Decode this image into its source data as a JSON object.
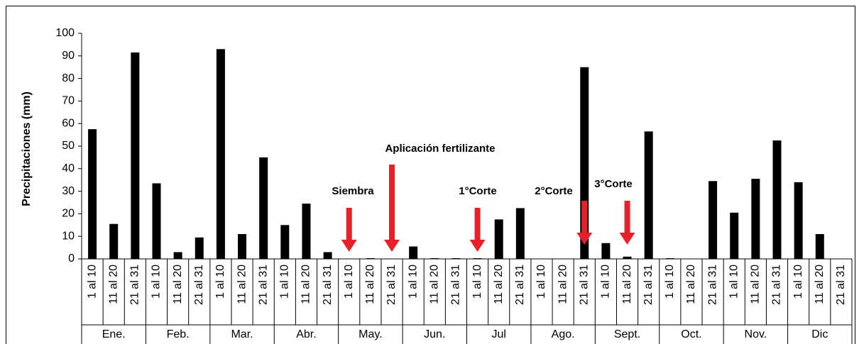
{
  "chart_data": {
    "type": "bar",
    "y_label": "Precipitaciones (mm)",
    "categories": [
      "1 al 10",
      "11 al 20",
      "21 al 31",
      "1 al 10",
      "11 al 20",
      "21 al 31",
      "1 al 10",
      "11 al 20",
      "21 al 31",
      "1 al 10",
      "11 al 20",
      "21 al 31",
      "1 al 10",
      "11 al 20",
      "21 al 31",
      "1 al 10",
      "11 al 20",
      "21 al 31",
      "1 al 10",
      "11 al 20",
      "21 al 31",
      "1 al 10",
      "11 al 20",
      "21 al 31",
      "1 al 10",
      "11 al 20",
      "21 al 31",
      "1 al 10",
      "11 al 20",
      "21 al 31",
      "1 al 10",
      "11 al 20",
      "21 al 31",
      "1 al 10",
      "11 al 20",
      "21 al 31"
    ],
    "months": [
      "Ene.",
      "Feb.",
      "Mar.",
      "Abr.",
      "May.",
      "Jun.",
      "Jul",
      "Ago.",
      "Sept.",
      "Oct.",
      "Nov.",
      "Dic"
    ],
    "values": [
      57.5,
      15.5,
      91.5,
      33.5,
      3,
      9.5,
      93,
      11,
      45,
      15,
      24.5,
      3,
      0,
      0.3,
      0,
      5.5,
      0.3,
      0.3,
      0.3,
      17.5,
      22.5,
      0,
      0,
      85,
      7,
      1,
      56.5,
      0.3,
      0,
      34.5,
      20.5,
      35.5,
      52.5,
      34,
      11,
      0
    ],
    "color": "#000000",
    "ylim": [
      0,
      100
    ],
    "yticks": [
      0,
      10,
      20,
      30,
      40,
      50,
      60,
      70,
      80,
      90,
      100
    ],
    "annotations": [
      "Siembra",
      "Aplicación fertilizante",
      "1°Corte",
      "2°Corte",
      "3°Corte"
    ],
    "annotation_color": "#e8202a"
  }
}
